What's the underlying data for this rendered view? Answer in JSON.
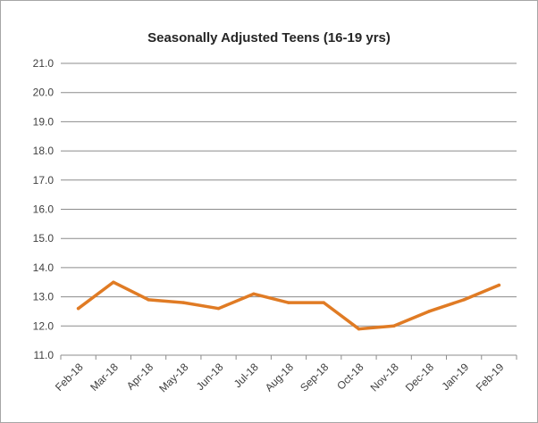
{
  "chart_data": {
    "type": "line",
    "title": "Seasonally Adjusted Teens (16-19 yrs)",
    "xlabel": "",
    "ylabel": "",
    "categories": [
      "Feb-18",
      "Mar-18",
      "Apr-18",
      "May-18",
      "Jun-18",
      "Jul-18",
      "Aug-18",
      "Sep-18",
      "Oct-18",
      "Nov-18",
      "Dec-18",
      "Jan-19",
      "Feb-19"
    ],
    "series": [
      {
        "values": [
          12.6,
          13.5,
          12.9,
          12.8,
          12.6,
          13.1,
          12.8,
          12.8,
          11.9,
          12.0,
          12.5,
          12.9,
          13.4
        ]
      }
    ],
    "ylim": [
      11.0,
      21.0
    ],
    "ytick_step": 1.0,
    "ytick_labels": [
      "11.0",
      "12.0",
      "13.0",
      "14.0",
      "15.0",
      "16.0",
      "17.0",
      "18.0",
      "19.0",
      "20.0",
      "21.0"
    ],
    "grid": "horizontal",
    "legend": "none",
    "line_color": "#e07b24",
    "grid_color": "#8c8c8c"
  }
}
